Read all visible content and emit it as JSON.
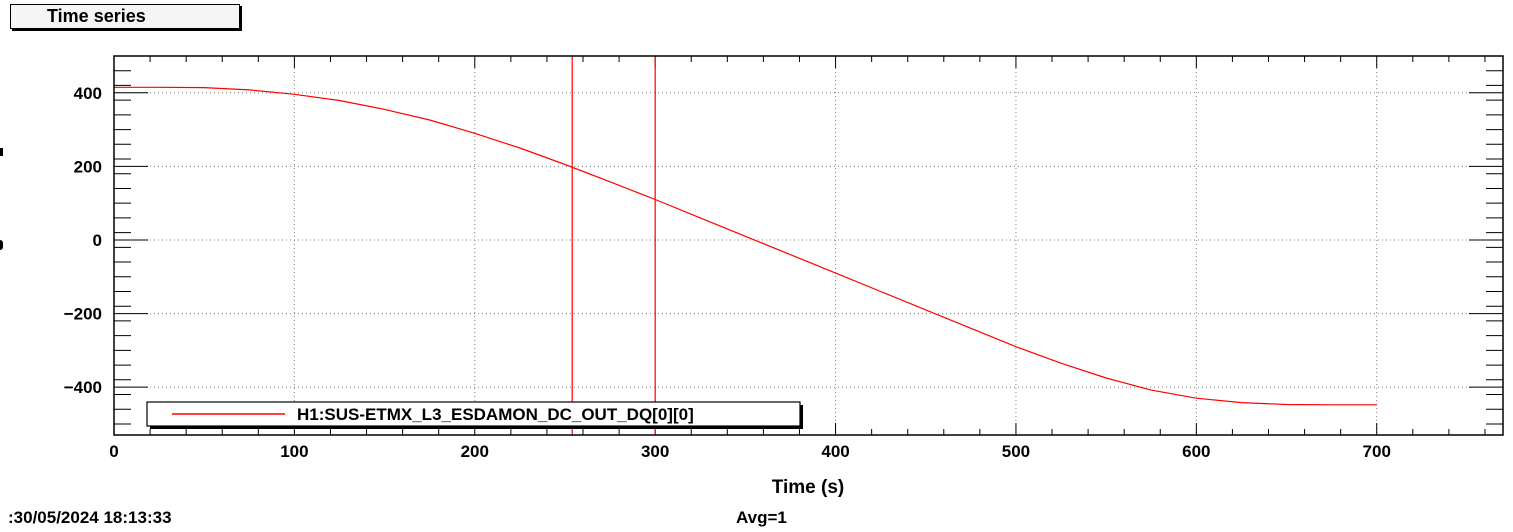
{
  "window": {
    "title_tab": "Time series",
    "footer_left": ":30/05/2024 18:13:33",
    "footer_right": "Avg=1"
  },
  "chart_data": {
    "type": "line",
    "title": "Time series",
    "xlabel": "Time (s)",
    "ylabel": "",
    "xlim": [
      0,
      770
    ],
    "ylim": [
      -530,
      500
    ],
    "x_ticks": [
      0,
      100,
      200,
      300,
      400,
      500,
      600,
      700
    ],
    "x_tick_labels": [
      "0",
      "100",
      "200",
      "300",
      "400",
      "500",
      "600",
      "700"
    ],
    "y_ticks": [
      400,
      200,
      0,
      -200,
      -400
    ],
    "y_tick_labels": [
      "400",
      "200",
      "0",
      "−200",
      "−400"
    ],
    "grid": true,
    "legend_position": "bottom-left",
    "series": [
      {
        "name": "H1:SUS-ETMX_L3_ESDAMON_DC_OUT_DQ[0][0]",
        "color": "#ff0000",
        "x": [
          0,
          25,
          50,
          75,
          100,
          125,
          150,
          175,
          200,
          225,
          250,
          275,
          300,
          325,
          350,
          375,
          400,
          425,
          450,
          475,
          500,
          525,
          550,
          575,
          600,
          625,
          650,
          675,
          700
        ],
        "y": [
          415,
          415,
          414,
          408,
          396,
          379,
          355,
          326,
          290,
          250,
          205,
          158,
          110,
          60,
          10,
          -40,
          -90,
          -140,
          -190,
          -240,
          -290,
          -335,
          -375,
          -408,
          -430,
          -442,
          -447,
          -448,
          -448
        ]
      }
    ],
    "cursors": {
      "color": "#ff0000",
      "x": [
        254,
        300
      ]
    }
  }
}
